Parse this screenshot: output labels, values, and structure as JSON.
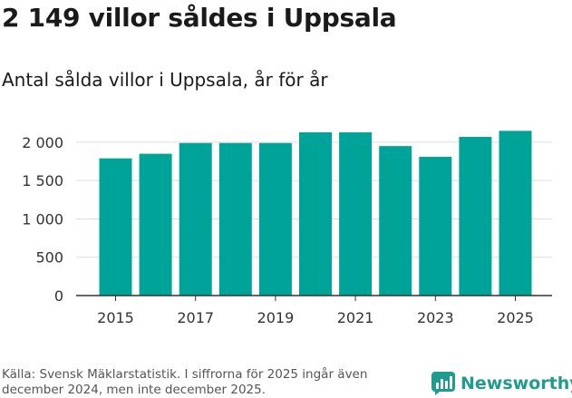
{
  "title": "2 149 villor såldes i Uppsala",
  "subtitle": "Antal sålda villor i Uppsala, år för år",
  "source": "Källa: Svensk Mäklarstatistik. I siffrorna för 2025 ingår även december 2024, men inte december 2025.",
  "logo": {
    "name": "Newsworthy",
    "icon": "bar-chart-logo-icon"
  },
  "colors": {
    "bar": "#00a398",
    "grid": "#dddddd",
    "axis": "#333333",
    "brand": "#1f9c8e"
  },
  "chart_data": {
    "type": "bar",
    "categories": [
      "2015",
      "2016",
      "2017",
      "2018",
      "2019",
      "2020",
      "2021",
      "2022",
      "2023",
      "2024",
      "2025"
    ],
    "values": [
      1790,
      1850,
      1990,
      1990,
      1990,
      2130,
      2130,
      1950,
      1810,
      2070,
      2149
    ],
    "xticks": [
      "2015",
      "2017",
      "2019",
      "2021",
      "2023",
      "2025"
    ],
    "yticks": [
      0,
      500,
      1000,
      1500,
      2000
    ],
    "ytick_labels": [
      "0",
      "500",
      "1 000",
      "1 500",
      "2 000"
    ],
    "ylim": [
      0,
      2200
    ],
    "xlabel": "",
    "ylabel": "",
    "grid": true
  }
}
